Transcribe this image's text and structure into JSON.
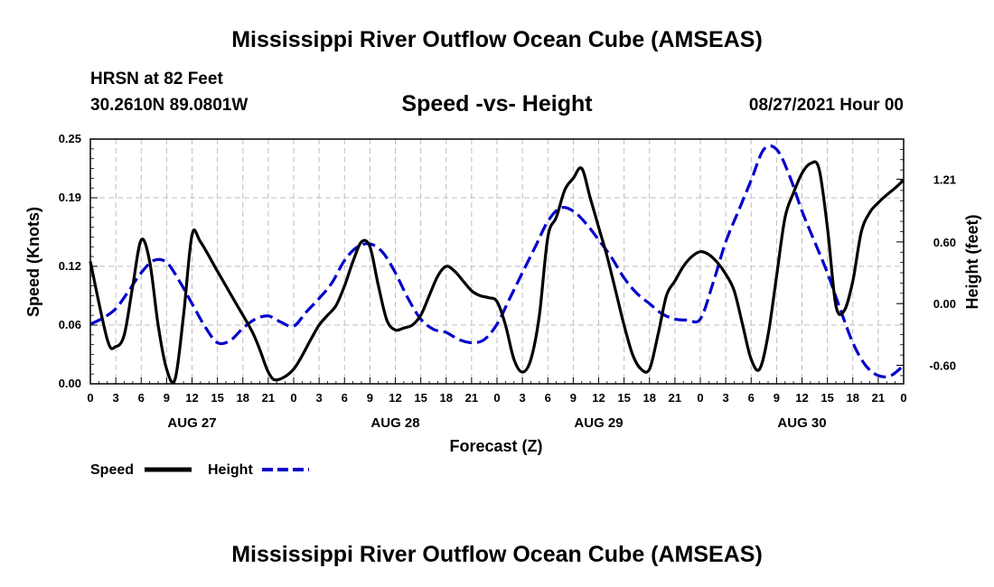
{
  "header": {
    "title": "Mississippi River Outflow Ocean Cube (AMSEAS)",
    "station": "HRSN at 82 Feet",
    "coordinates": "30.2610N  89.0801W",
    "subtitle": "Speed -vs- Height",
    "datetime": "08/27/2021 Hour 00"
  },
  "footer": {
    "title": "Mississippi River Outflow Ocean Cube (AMSEAS)"
  },
  "chart_data": {
    "type": "line",
    "title": "Speed -vs- Height",
    "xlabel": "Forecast (Z)",
    "ylabel": "Speed (Knots)",
    "y2label": "Height (feet)",
    "xlim": [
      0,
      96
    ],
    "ylim": [
      0,
      0.25
    ],
    "y2lim": [
      -0.78,
      1.6
    ],
    "grid": true,
    "x_tick_values": [
      0,
      3,
      6,
      9,
      12,
      15,
      18,
      21,
      24,
      27,
      30,
      33,
      36,
      39,
      42,
      45,
      48,
      51,
      54,
      57,
      60,
      63,
      66,
      69,
      72,
      75,
      78,
      81,
      84,
      87,
      90,
      93,
      96
    ],
    "x_tick_labels": [
      "0",
      "3",
      "6",
      "9",
      "12",
      "15",
      "18",
      "21",
      "0",
      "3",
      "6",
      "9",
      "12",
      "15",
      "18",
      "21",
      "0",
      "3",
      "6",
      "9",
      "12",
      "15",
      "18",
      "21",
      "0",
      "3",
      "6",
      "9",
      "12",
      "15",
      "18",
      "21",
      "0"
    ],
    "day_labels": [
      {
        "hour": 12,
        "label": "AUG 27"
      },
      {
        "hour": 36,
        "label": "AUG 28"
      },
      {
        "hour": 60,
        "label": "AUG 29"
      },
      {
        "hour": 84,
        "label": "AUG 30"
      }
    ],
    "y_ticks": [
      0.0,
      0.06,
      0.12,
      0.19,
      0.25
    ],
    "y_tick_labels": [
      "0.00",
      "0.06",
      "0.12",
      "0.19",
      "0.25"
    ],
    "y2_ticks": [
      -0.6,
      0.0,
      0.6,
      1.21
    ],
    "y2_tick_labels": [
      "-0.60",
      "0.00",
      "0.60",
      "1.21"
    ],
    "legend_position": "bottom-left",
    "series": [
      {
        "name": "Speed",
        "axis": "left",
        "color": "#000000",
        "style": "solid",
        "x": [
          0,
          2,
          3,
          4,
          5,
          6,
          7,
          8,
          9,
          10,
          11,
          12,
          13,
          15,
          17,
          19,
          20,
          21,
          22,
          24,
          26,
          27,
          28,
          29,
          30,
          31,
          32,
          33,
          34,
          35,
          36,
          37,
          38,
          39,
          40,
          41,
          42,
          43,
          44,
          45,
          46,
          47,
          48,
          49,
          50,
          51,
          52,
          53,
          54,
          55,
          56,
          57,
          58,
          59,
          60,
          61,
          62,
          63,
          64,
          65,
          66,
          67,
          68,
          69,
          70,
          71,
          72,
          73,
          74,
          75,
          76,
          77,
          78,
          79,
          80,
          81,
          82,
          83,
          84,
          85,
          86,
          87,
          88,
          89,
          90,
          91,
          92,
          93,
          94,
          95,
          96
        ],
        "values": [
          0.125,
          0.045,
          0.038,
          0.05,
          0.1,
          0.147,
          0.125,
          0.06,
          0.015,
          0.005,
          0.07,
          0.152,
          0.145,
          0.115,
          0.085,
          0.055,
          0.035,
          0.012,
          0.004,
          0.015,
          0.045,
          0.06,
          0.07,
          0.08,
          0.1,
          0.125,
          0.145,
          0.14,
          0.1,
          0.065,
          0.055,
          0.057,
          0.06,
          0.07,
          0.09,
          0.11,
          0.12,
          0.115,
          0.105,
          0.095,
          0.09,
          0.088,
          0.084,
          0.06,
          0.025,
          0.012,
          0.025,
          0.07,
          0.15,
          0.17,
          0.198,
          0.21,
          0.22,
          0.19,
          0.16,
          0.13,
          0.095,
          0.06,
          0.03,
          0.015,
          0.015,
          0.05,
          0.09,
          0.105,
          0.12,
          0.13,
          0.135,
          0.132,
          0.124,
          0.112,
          0.095,
          0.06,
          0.025,
          0.015,
          0.05,
          0.11,
          0.17,
          0.195,
          0.215,
          0.225,
          0.22,
          0.16,
          0.08,
          0.075,
          0.105,
          0.155,
          0.175,
          0.185,
          0.193,
          0.2,
          0.208
        ]
      },
      {
        "name": "Height",
        "axis": "right",
        "color": "#0000cc",
        "style": "dashed",
        "x": [
          0,
          1.5,
          3,
          4.5,
          6,
          7.5,
          9,
          10.5,
          12,
          13.5,
          15,
          16.5,
          18,
          19.5,
          21,
          22.5,
          24,
          25.5,
          27,
          28.5,
          30,
          31.5,
          33,
          34.5,
          36,
          37.5,
          39,
          40.5,
          42,
          43.5,
          45,
          46.5,
          48,
          49.5,
          51,
          52.5,
          54,
          55.5,
          57,
          58.5,
          60,
          61.5,
          63,
          64.5,
          66,
          67.5,
          69,
          70.5,
          72,
          73.5,
          75,
          76.5,
          78,
          79.5,
          81,
          82.5,
          84,
          85.5,
          87,
          88.5,
          90,
          91.5,
          93,
          94.5,
          96
        ],
        "values": [
          -0.2,
          -0.14,
          -0.05,
          0.12,
          0.3,
          0.42,
          0.4,
          0.22,
          0.0,
          -0.22,
          -0.38,
          -0.36,
          -0.24,
          -0.15,
          -0.12,
          -0.18,
          -0.22,
          -0.08,
          0.05,
          0.2,
          0.42,
          0.55,
          0.58,
          0.5,
          0.3,
          0.05,
          -0.15,
          -0.25,
          -0.28,
          -0.35,
          -0.38,
          -0.35,
          -0.2,
          0.05,
          0.3,
          0.55,
          0.8,
          0.93,
          0.9,
          0.78,
          0.62,
          0.45,
          0.25,
          0.1,
          0.0,
          -0.1,
          -0.15,
          -0.16,
          -0.15,
          0.2,
          0.6,
          0.9,
          1.2,
          1.5,
          1.5,
          1.25,
          0.9,
          0.6,
          0.3,
          -0.05,
          -0.38,
          -0.6,
          -0.7,
          -0.7,
          -0.6
        ]
      }
    ]
  }
}
